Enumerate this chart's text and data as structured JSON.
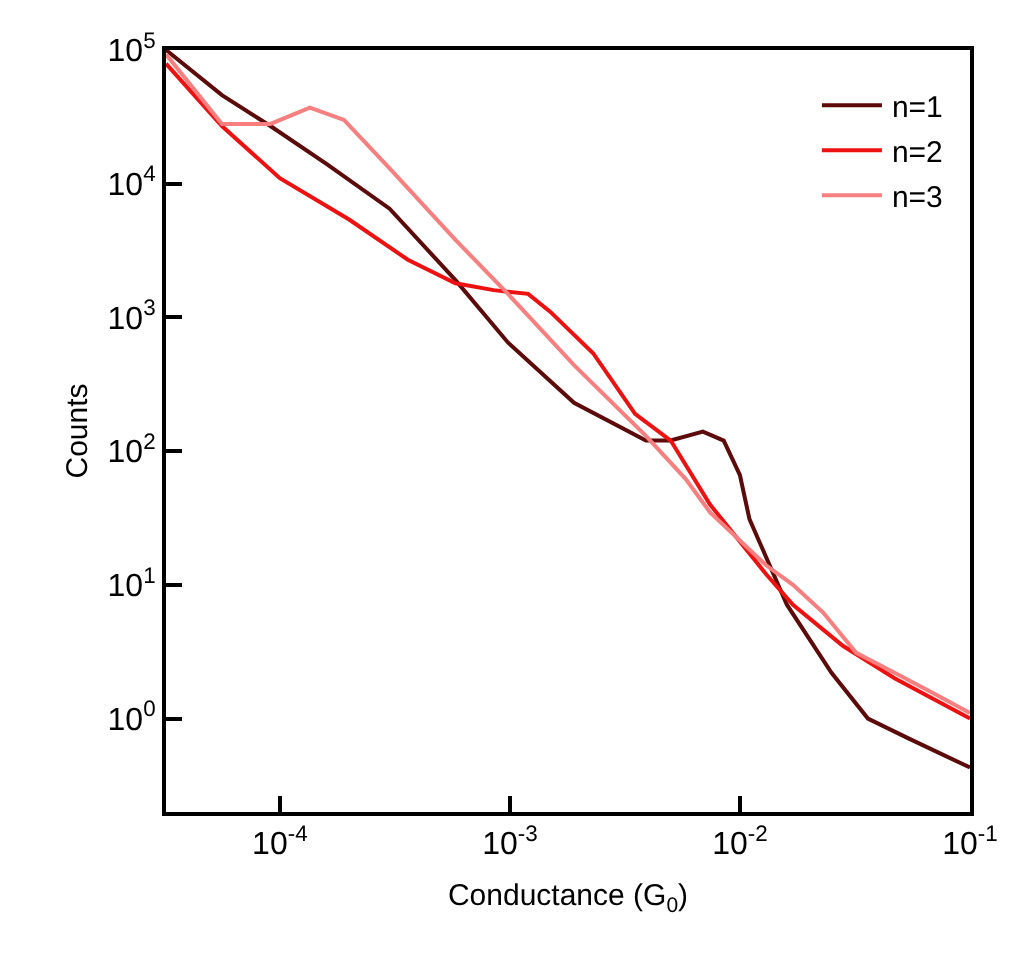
{
  "chart_data": {
    "type": "line",
    "xlabel": "Conductance (G$_{0}$)",
    "ylabel": "Counts",
    "log": "xy",
    "legend": "top right",
    "marker": "none",
    "line_style": "solid",
    "xlim": [
      3.2e-05,
      0.1
    ],
    "ylim": [
      0.2,
      100000
    ],
    "xticks": [
      {
        "value": 0.0001,
        "label": "10$^{-4}$"
      },
      {
        "value": 0.001,
        "label": "10$^{-3}$"
      },
      {
        "value": 0.01,
        "label": "10$^{-2}$"
      },
      {
        "value": 0.1,
        "label": "10$^{-1}$"
      }
    ],
    "yticks": [
      {
        "value": 1,
        "label": "10$^{0}$"
      },
      {
        "value": 10,
        "label": "10$^{1}$"
      },
      {
        "value": 100,
        "label": "10$^{2}$"
      },
      {
        "value": 1000,
        "label": "10$^{3}$"
      },
      {
        "value": 10000,
        "label": "10$^{4}$"
      },
      {
        "value": 100000,
        "label": "10$^{5}$"
      }
    ],
    "series": [
      {
        "name": "n=1",
        "color": "#5c0a0a",
        "x": [
          3.2e-05,
          5.6e-05,
          9.1e-05,
          0.00016,
          0.0003,
          0.00058,
          0.00098,
          0.0019,
          0.0039,
          0.005,
          0.0069,
          0.0085,
          0.01,
          0.011,
          0.016,
          0.025,
          0.036,
          0.054,
          0.1
        ],
        "values": [
          100000,
          46000,
          27000,
          14000,
          6500,
          1900,
          650,
          230,
          120,
          120,
          140,
          120,
          66,
          31,
          7.1,
          2.2,
          1.0,
          0.71,
          0.43
        ]
      },
      {
        "name": "n=2",
        "color": "#ee1111",
        "x": [
          3.2e-05,
          5.6e-05,
          0.0001,
          0.0002,
          0.00036,
          0.00058,
          0.00085,
          0.0012,
          0.0015,
          0.0023,
          0.0035,
          0.005,
          0.0074,
          0.013,
          0.017,
          0.028,
          0.047,
          0.1
        ],
        "values": [
          79000,
          27000,
          11000,
          5400,
          2700,
          1800,
          1600,
          1500,
          1100,
          540,
          190,
          120,
          40,
          12,
          7.1,
          3.5,
          2.0,
          1.0
        ]
      },
      {
        "name": "n=3",
        "color": "#f87f7f",
        "x": [
          3.2e-05,
          5.6e-05,
          9.1e-05,
          0.000135,
          0.00019,
          0.0003,
          0.00058,
          0.00098,
          0.0019,
          0.0039,
          0.0058,
          0.0074,
          0.013,
          0.017,
          0.023,
          0.032,
          0.047,
          0.069,
          0.1
        ],
        "values": [
          93000,
          28000,
          28000,
          37000,
          30000,
          13000,
          3800,
          1500,
          440,
          130,
          62,
          35,
          14,
          10,
          6.2,
          3.1,
          2.2,
          1.55,
          1.1
        ]
      }
    ]
  }
}
